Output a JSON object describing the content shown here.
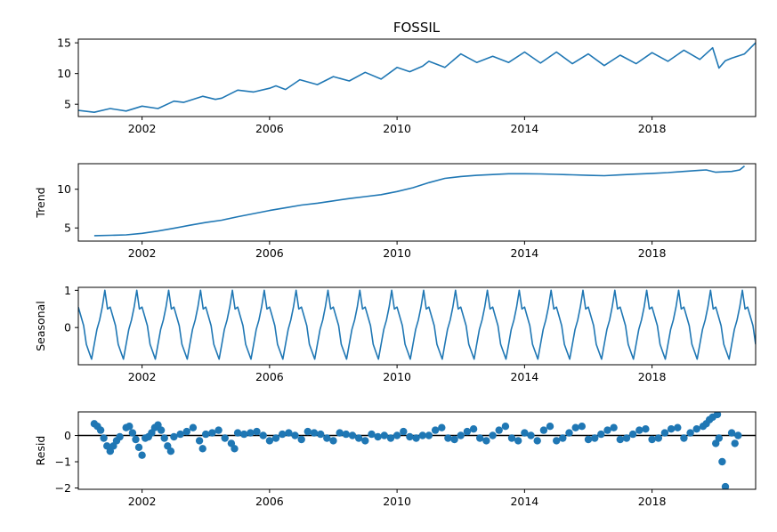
{
  "figure": {
    "title": "FOSSIL"
  },
  "chart_data": [
    {
      "type": "line",
      "panel": "observed",
      "title": "FOSSIL",
      "ylabel": "",
      "xlim": [
        2000.0,
        2021.25
      ],
      "ylim": [
        3.0,
        15.6
      ],
      "xticks": [
        2002,
        2006,
        2010,
        2014,
        2018
      ],
      "yticks": [
        5,
        10,
        15
      ],
      "series": [
        {
          "x": [
            2000.0,
            2000.5,
            2001.0,
            2001.5,
            2002.0,
            2002.5,
            2003.0,
            2003.3,
            2003.9,
            2004.3,
            2004.5,
            2005.0,
            2005.5,
            2006.0,
            2006.2,
            2006.5,
            2006.95,
            2007.5,
            2008.0,
            2008.5,
            2009.0,
            2009.5,
            2010.0,
            2010.4,
            2010.8,
            2011.0,
            2011.5,
            2012.0,
            2012.5,
            2013.0,
            2013.5,
            2014.0,
            2014.5,
            2015.0,
            2015.5,
            2016.0,
            2016.5,
            2017.0,
            2017.5,
            2018.0,
            2018.5,
            2019.0,
            2019.5,
            2019.9,
            2020.1,
            2020.3,
            2020.5,
            2020.9,
            2021.25
          ],
          "y": [
            4.0,
            3.7,
            4.3,
            3.9,
            4.7,
            4.3,
            5.5,
            5.3,
            6.3,
            5.8,
            6.0,
            7.3,
            7.0,
            7.6,
            8.0,
            7.4,
            9.0,
            8.2,
            9.5,
            8.8,
            10.2,
            9.1,
            11.0,
            10.3,
            11.2,
            12.0,
            11.0,
            13.2,
            11.8,
            12.8,
            11.8,
            13.5,
            11.7,
            13.5,
            11.6,
            13.2,
            11.3,
            13.0,
            11.6,
            13.4,
            12.0,
            13.8,
            12.3,
            14.2,
            10.9,
            12.1,
            12.5,
            13.2,
            15.0
          ]
        }
      ]
    },
    {
      "type": "line",
      "panel": "trend",
      "ylabel": "Trend",
      "xlim": [
        2000.0,
        2021.25
      ],
      "ylim": [
        3.3,
        13.3
      ],
      "xticks": [
        2002,
        2006,
        2010,
        2014,
        2018
      ],
      "yticks": [
        5,
        10
      ],
      "series": [
        {
          "x": [
            2000.5,
            2001.0,
            2001.5,
            2002.0,
            2002.5,
            2003.0,
            2003.5,
            2004.0,
            2004.5,
            2005.0,
            2005.5,
            2006.0,
            2006.5,
            2007.0,
            2007.5,
            2008.0,
            2008.5,
            2009.0,
            2009.5,
            2010.0,
            2010.5,
            2011.0,
            2011.5,
            2012.0,
            2012.5,
            2013.0,
            2013.5,
            2014.0,
            2014.5,
            2015.0,
            2015.5,
            2016.0,
            2016.5,
            2017.0,
            2017.5,
            2018.0,
            2018.5,
            2019.0,
            2019.5,
            2019.7,
            2020.0,
            2020.5,
            2020.75,
            2020.9
          ],
          "y": [
            4.0,
            4.05,
            4.1,
            4.3,
            4.6,
            4.95,
            5.35,
            5.7,
            6.0,
            6.45,
            6.85,
            7.25,
            7.6,
            7.95,
            8.2,
            8.5,
            8.8,
            9.05,
            9.3,
            9.7,
            10.2,
            10.85,
            11.4,
            11.65,
            11.8,
            11.9,
            12.0,
            12.0,
            11.98,
            11.92,
            11.86,
            11.8,
            11.75,
            11.85,
            11.95,
            12.05,
            12.15,
            12.3,
            12.45,
            12.5,
            12.2,
            12.3,
            12.5,
            13.0
          ]
        }
      ]
    },
    {
      "type": "line",
      "panel": "seasonal",
      "ylabel": "Seasonal",
      "xlim": [
        2000.0,
        2021.25
      ],
      "ylim": [
        -1.0,
        1.08
      ],
      "xticks": [
        2002,
        2006,
        2010,
        2014,
        2018
      ],
      "yticks": [
        0,
        1
      ],
      "series": [
        {
          "period": 1,
          "pattern": [
            0.55,
            0.3,
            0.05,
            -0.45,
            -0.65,
            -0.85,
            -0.45,
            -0.05,
            0.2,
            0.55,
            1.0,
            0.5
          ],
          "x_start": 2000.0,
          "x_end": 2021.25
        }
      ]
    },
    {
      "type": "scatter",
      "panel": "resid",
      "ylabel": "Resid",
      "xlim": [
        2000.0,
        2021.25
      ],
      "ylim": [
        -2.05,
        0.9
      ],
      "xticks": [
        2002,
        2006,
        2010,
        2014,
        2018
      ],
      "yticks": [
        -2,
        -1,
        0
      ],
      "zero_line": true,
      "series": [
        {
          "x": [
            2000.5,
            2000.6,
            2000.7,
            2000.8,
            2000.9,
            2001.0,
            2001.1,
            2001.2,
            2001.3,
            2001.5,
            2001.6,
            2001.7,
            2001.8,
            2001.9,
            2002.0,
            2002.1,
            2002.2,
            2002.3,
            2002.4,
            2002.5,
            2002.6,
            2002.7,
            2002.8,
            2002.9,
            2003.0,
            2003.2,
            2003.4,
            2003.6,
            2003.8,
            2003.9,
            2004.0,
            2004.2,
            2004.4,
            2004.6,
            2004.8,
            2004.9,
            2005.0,
            2005.2,
            2005.4,
            2005.6,
            2005.8,
            2006.0,
            2006.2,
            2006.4,
            2006.6,
            2006.8,
            2007.0,
            2007.2,
            2007.4,
            2007.6,
            2007.8,
            2008.0,
            2008.2,
            2008.4,
            2008.6,
            2008.8,
            2009.0,
            2009.2,
            2009.4,
            2009.6,
            2009.8,
            2010.0,
            2010.2,
            2010.4,
            2010.6,
            2010.8,
            2011.0,
            2011.2,
            2011.4,
            2011.6,
            2011.8,
            2012.0,
            2012.2,
            2012.4,
            2012.6,
            2012.8,
            2013.0,
            2013.2,
            2013.4,
            2013.6,
            2013.8,
            2014.0,
            2014.2,
            2014.4,
            2014.6,
            2014.8,
            2015.0,
            2015.2,
            2015.4,
            2015.6,
            2015.8,
            2016.0,
            2016.2,
            2016.4,
            2016.6,
            2016.8,
            2017.0,
            2017.2,
            2017.4,
            2017.6,
            2017.8,
            2018.0,
            2018.2,
            2018.4,
            2018.6,
            2018.8,
            2019.0,
            2019.2,
            2019.4,
            2019.6,
            2019.7,
            2019.8,
            2019.9,
            2020.0,
            2020.05,
            2020.1,
            2020.2,
            2020.3,
            2020.5,
            2020.6,
            2020.7
          ],
          "y": [
            0.45,
            0.35,
            0.2,
            -0.1,
            -0.4,
            -0.6,
            -0.4,
            -0.2,
            -0.05,
            0.3,
            0.35,
            0.1,
            -0.15,
            -0.45,
            -0.75,
            -0.1,
            -0.05,
            0.1,
            0.3,
            0.4,
            0.2,
            -0.1,
            -0.4,
            -0.6,
            -0.05,
            0.05,
            0.15,
            0.3,
            -0.2,
            -0.5,
            0.05,
            0.1,
            0.2,
            -0.1,
            -0.3,
            -0.5,
            0.1,
            0.05,
            0.1,
            0.15,
            0.0,
            -0.2,
            -0.1,
            0.05,
            0.1,
            0.0,
            -0.15,
            0.15,
            0.1,
            0.05,
            -0.1,
            -0.2,
            0.1,
            0.05,
            0.0,
            -0.1,
            -0.2,
            0.05,
            -0.05,
            0.0,
            -0.1,
            0.0,
            0.15,
            -0.05,
            -0.1,
            0.0,
            0.0,
            0.2,
            0.3,
            -0.1,
            -0.15,
            0.0,
            0.15,
            0.25,
            -0.1,
            -0.2,
            0.0,
            0.2,
            0.35,
            -0.1,
            -0.2,
            0.1,
            0.0,
            -0.2,
            0.2,
            0.35,
            -0.2,
            -0.1,
            0.1,
            0.3,
            0.35,
            -0.15,
            -0.1,
            0.05,
            0.2,
            0.3,
            -0.15,
            -0.1,
            0.05,
            0.2,
            0.25,
            -0.15,
            -0.1,
            0.1,
            0.25,
            0.3,
            -0.1,
            0.1,
            0.25,
            0.35,
            0.45,
            0.6,
            0.7,
            -0.3,
            0.8,
            -0.1,
            -1.0,
            -1.95,
            0.1,
            -0.3,
            0.0
          ]
        }
      ]
    }
  ]
}
